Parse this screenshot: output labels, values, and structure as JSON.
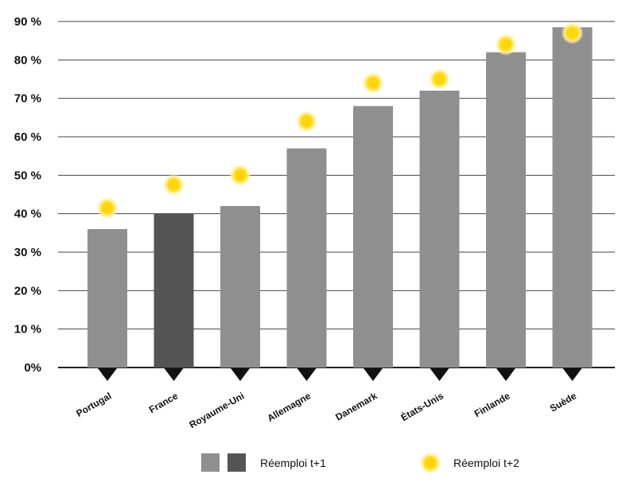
{
  "chart_data": {
    "type": "bar",
    "categories": [
      "Portugal",
      "France",
      "Royaume-Uni",
      "Allemagne",
      "Danemark",
      "États-Unis",
      "Finlande",
      "Suède"
    ],
    "series": [
      {
        "name": "Réemploi t+1",
        "values": [
          36,
          40,
          42,
          57,
          68,
          72,
          82,
          88.5
        ],
        "highlight_category": "France"
      },
      {
        "name": "Réemploi t+2",
        "values": [
          41.5,
          47.5,
          50,
          64,
          74,
          75,
          84,
          87
        ]
      }
    ],
    "yticks": [
      "0%",
      "10 %",
      "20 %",
      "30 %",
      "40 %",
      "50 %",
      "60 %",
      "70 %",
      "80 %",
      "90 %"
    ],
    "ylim": [
      0,
      90
    ],
    "grid": true,
    "legend_position": "bottom",
    "colors": {
      "bar": "#8f8f8f",
      "bar_highlight": "#555555",
      "point": "#ffd60a",
      "point_glow": "#fff1a0",
      "grid": "#444444",
      "marker": "#111111"
    },
    "legend": {
      "bars_label": "Réemploi t+1",
      "points_label": "Réemploi t+2"
    }
  }
}
